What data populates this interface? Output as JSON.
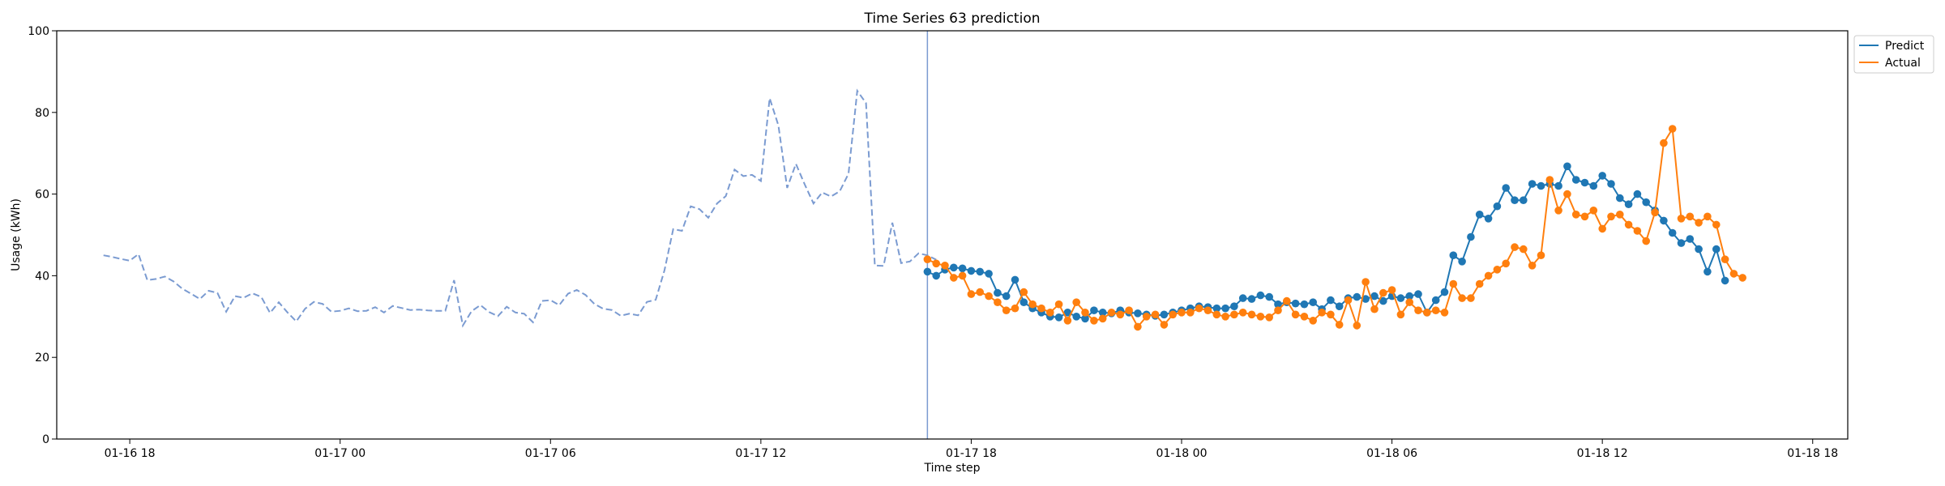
{
  "chart_data": {
    "type": "line",
    "title": "Time Series 63 prediction",
    "xlabel": "Time step",
    "ylabel": "Usage (kWh)",
    "ylim": [
      0,
      100
    ],
    "yticks": [
      0,
      20,
      40,
      60,
      80,
      100
    ],
    "xlim": [
      "2016-01-16T15:55",
      "2016-01-18T19:00"
    ],
    "xticks": [
      {
        "value": "2016-01-16T18:00",
        "label": "01-16 18"
      },
      {
        "value": "2016-01-17T00:00",
        "label": "01-17 00"
      },
      {
        "value": "2016-01-17T06:00",
        "label": "01-17 06"
      },
      {
        "value": "2016-01-17T12:00",
        "label": "01-17 12"
      },
      {
        "value": "2016-01-17T18:00",
        "label": "01-17 18"
      },
      {
        "value": "2016-01-18T00:00",
        "label": "01-18 00"
      },
      {
        "value": "2016-01-18T06:00",
        "label": "01-18 06"
      },
      {
        "value": "2016-01-18T12:00",
        "label": "01-18 12"
      },
      {
        "value": "2016-01-18T18:00",
        "label": "01-18 18"
      }
    ],
    "grid": false,
    "legend_position": "outside top-right",
    "split_time": "2016-01-17T16:45",
    "colors": {
      "history": "#7b9bd1",
      "predict": "#1f77b4",
      "actual": "#ff7f0e",
      "split": "#7b9bd1"
    },
    "history": {
      "start": "2016-01-16T17:15",
      "step_minutes": 15,
      "values": [
        45.0,
        44.6,
        44.1,
        43.7,
        45.3,
        38.9,
        39.2,
        39.8,
        38.6,
        36.8,
        35.6,
        34.3,
        36.3,
        35.8,
        31.2,
        35.0,
        34.6,
        35.7,
        34.8,
        30.9,
        33.5,
        31.0,
        28.8,
        31.9,
        33.6,
        33.1,
        31.2,
        31.4,
        32.0,
        31.3,
        31.4,
        32.3,
        31.0,
        32.6,
        32.1,
        31.6,
        31.7,
        31.5,
        31.4,
        31.4,
        38.9,
        27.8,
        31.3,
        32.8,
        31.1,
        30.1,
        32.4,
        31.0,
        30.7,
        28.6,
        33.8,
        34.0,
        32.8,
        35.6,
        36.5,
        35.3,
        33.1,
        31.9,
        31.6,
        30.2,
        30.7,
        30.3,
        33.6,
        34.1,
        41.3,
        51.4,
        51.0,
        57.0,
        56.3,
        54.2,
        57.7,
        59.5,
        66.0,
        64.4,
        64.7,
        63.2,
        83.5,
        76.8,
        61.5,
        67.4,
        62.4,
        57.7,
        60.4,
        59.4,
        60.7,
        65.0,
        85.3,
        82.3,
        42.5,
        42.4,
        53.0,
        43.1,
        43.5,
        45.5,
        45.0,
        43.9
      ]
    },
    "series": [
      {
        "name": "Predict",
        "start": "2016-01-17T16:45",
        "step_minutes": 15,
        "values": [
          41.0,
          40.0,
          41.5,
          42.0,
          41.8,
          41.2,
          41.0,
          40.5,
          35.8,
          35.0,
          39.0,
          33.5,
          32.0,
          31.0,
          30.0,
          29.8,
          31.0,
          30.0,
          29.5,
          31.5,
          31.0,
          30.8,
          31.5,
          31.0,
          30.8,
          30.5,
          30.2,
          30.5,
          31.0,
          31.5,
          32.0,
          32.5,
          32.3,
          32.0,
          32.0,
          32.5,
          34.5,
          34.3,
          35.2,
          34.8,
          33.0,
          33.5,
          33.2,
          33.0,
          33.5,
          31.8,
          34.0,
          32.5,
          34.5,
          34.8,
          34.3,
          35.0,
          33.8,
          35.0,
          34.5,
          35.0,
          35.5,
          31.0,
          34.0,
          36.0,
          45.0,
          43.5,
          49.5,
          55.0,
          54.0,
          57.0,
          61.5,
          58.5,
          58.5,
          62.5,
          62.0,
          62.5,
          62.0,
          66.8,
          63.5,
          62.8,
          62.0,
          64.5,
          62.5,
          59.0,
          57.5,
          60.0,
          58.0,
          56.0,
          53.5,
          50.5,
          48.0,
          49.0,
          46.5,
          41.0,
          46.5,
          38.8
        ]
      },
      {
        "name": "Actual",
        "start": "2016-01-17T16:45",
        "step_minutes": 15,
        "values": [
          44.0,
          43.0,
          42.5,
          39.5,
          40.0,
          35.5,
          36.0,
          35.0,
          33.5,
          31.5,
          32.0,
          36.0,
          33.0,
          32.0,
          31.0,
          33.0,
          29.0,
          33.5,
          31.0,
          29.0,
          29.5,
          31.0,
          30.5,
          31.5,
          27.5,
          30.0,
          30.5,
          28.0,
          30.5,
          31.0,
          31.0,
          32.0,
          31.5,
          30.5,
          30.0,
          30.5,
          31.0,
          30.5,
          30.0,
          29.8,
          31.5,
          33.8,
          30.5,
          30.0,
          29.0,
          31.0,
          30.5,
          28.0,
          34.0,
          27.8,
          38.5,
          31.8,
          35.8,
          36.5,
          30.5,
          33.5,
          31.5,
          31.0,
          31.5,
          31.0,
          38.0,
          34.5,
          34.5,
          38.0,
          40.0,
          41.5,
          43.0,
          47.0,
          46.5,
          42.5,
          45.0,
          63.5,
          56.0,
          60.0,
          55.0,
          54.5,
          56.0,
          51.5,
          54.5,
          55.0,
          52.5,
          51.0,
          48.5,
          55.5,
          72.5,
          76.0,
          54.0,
          54.5,
          53.0,
          54.5,
          52.5,
          44.0,
          40.5,
          39.5
        ]
      }
    ]
  }
}
